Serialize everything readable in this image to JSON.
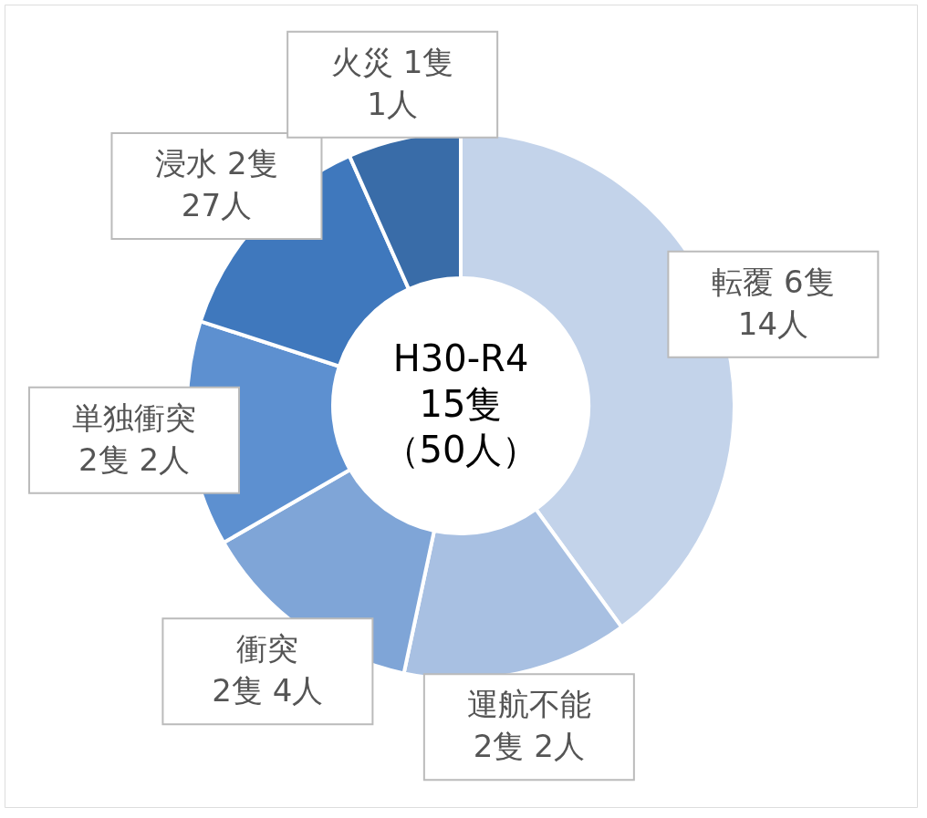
{
  "chart_data": {
    "type": "donut",
    "categories": [
      "転覆 6隻\n14人",
      "運航不能\n2隻 2人",
      "衝突\n2隻 4人",
      "単独衝突\n2隻 2人",
      "浸水 2隻\n27人",
      "火災 1隻\n1人"
    ],
    "values": [
      6,
      2,
      2,
      2,
      2,
      1
    ],
    "colors": [
      "#c3d3ea",
      "#a8c0e2",
      "#7fa5d7",
      "#5d90d0",
      "#3f78bd",
      "#396ca8"
    ],
    "annotations": [
      "H30-R4",
      "15隻",
      "（50人）"
    ],
    "legend": false
  }
}
